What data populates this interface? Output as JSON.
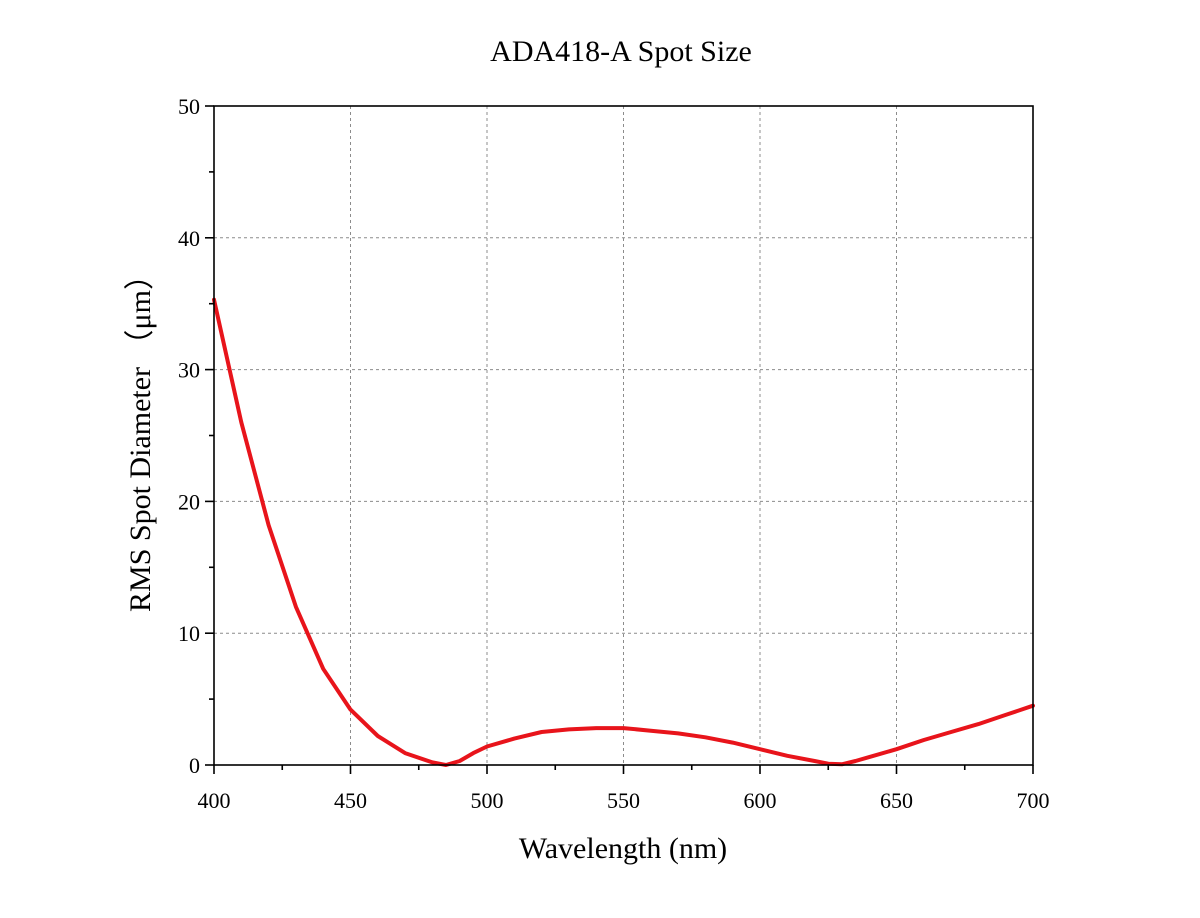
{
  "chart_data": {
    "type": "line",
    "title": "ADA418-A Spot Size",
    "xlabel": "Wavelength (nm)",
    "ylabel": "RMS Spot Diameter （μm）",
    "xlim": [
      400,
      700
    ],
    "ylim": [
      0,
      50
    ],
    "x_ticks": [
      "400",
      "450",
      "500",
      "550",
      "600",
      "650",
      "700"
    ],
    "y_ticks": [
      "0",
      "10",
      "20",
      "30",
      "40",
      "50"
    ],
    "grid": true,
    "legend": "none",
    "series": [
      {
        "color": "#e8141b",
        "x": [
          400,
          410,
          420,
          430,
          440,
          450,
          460,
          470,
          480,
          485,
          490,
          495,
          500,
          510,
          520,
          530,
          540,
          550,
          560,
          570,
          580,
          590,
          600,
          610,
          620,
          625,
          630,
          635,
          640,
          650,
          660,
          670,
          680,
          690,
          700
        ],
        "y": [
          35.3,
          26.0,
          18.2,
          12.0,
          7.3,
          4.2,
          2.2,
          0.9,
          0.2,
          0.0,
          0.3,
          0.9,
          1.4,
          2.0,
          2.5,
          2.7,
          2.8,
          2.8,
          2.6,
          2.4,
          2.1,
          1.7,
          1.2,
          0.7,
          0.3,
          0.1,
          0.05,
          0.3,
          0.6,
          1.2,
          1.9,
          2.5,
          3.1,
          3.8,
          4.5
        ]
      }
    ]
  }
}
